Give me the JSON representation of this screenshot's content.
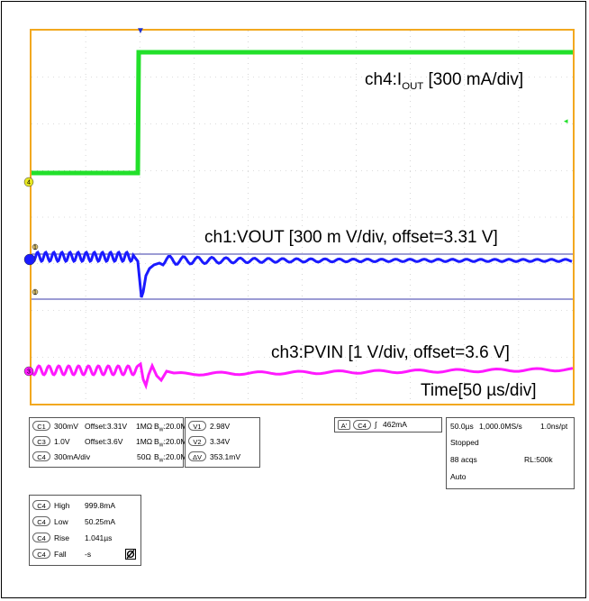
{
  "waveform_labels": {
    "ch4_prefix": "ch4:I",
    "ch4_sub": "OUT",
    "ch4_suffix": " [300 mA/div]",
    "ch1": "ch1:VOUT [300 m V/div,  offset=3.31 V]",
    "ch3": "ch3:PVIN [1 V/div,  offset=3.6 V]",
    "time": "Time[50 µs/div]"
  },
  "channel_markers": {
    "ch4": "4",
    "ch1": "1",
    "ch1_ref": "1",
    "ch3": "3"
  },
  "colors": {
    "ch4": "#22e02a",
    "ch1": "#1a1aff",
    "ch3": "#ff19ff",
    "grid": "#bbbbbb",
    "border": "#f2a81f",
    "hline": "#3a3aaa"
  },
  "channel_settings": [
    {
      "ch": "C1",
      "scale": "300mV",
      "offset": "Offset:3.31V",
      "imp": "1MΩ",
      "bw": "B",
      "bw_sub": "W",
      "bw_val": ":20.0M"
    },
    {
      "ch": "C3",
      "scale": "1.0V",
      "offset": "Offset:3.6V",
      "imp": "1MΩ",
      "bw": "B",
      "bw_sub": "W",
      "bw_val": ":20.0M"
    },
    {
      "ch": "C4",
      "scale": "300mA/div",
      "offset": "",
      "imp": "50Ω",
      "bw": "B",
      "bw_sub": "W",
      "bw_val": ":20.0M"
    }
  ],
  "cursors": [
    {
      "label": "V1",
      "value": "2.98V"
    },
    {
      "label": "V2",
      "value": "3.34V"
    },
    {
      "label": "ΔV",
      "value": "353.1mV"
    }
  ],
  "trigger": {
    "mode": "A'",
    "source": "C4",
    "slope": "∫",
    "level": "462mA"
  },
  "timebase": {
    "div": "50.0µs",
    "rate": "1,000.0MS/s",
    "pt": "1.0ns/pt",
    "status": "Stopped",
    "acqs": "88 acqs",
    "rl": "RL:500k",
    "mode": "Auto"
  },
  "measurements": [
    {
      "ch": "C4",
      "name": "High",
      "value": "999.8mA"
    },
    {
      "ch": "C4",
      "name": "Low",
      "value": "50.25mA"
    },
    {
      "ch": "C4",
      "name": "Rise",
      "value": "1.041µs"
    },
    {
      "ch": "C4",
      "name": "Fall",
      "value": "-s"
    }
  ],
  "measure_icon": "no-signal-icon"
}
